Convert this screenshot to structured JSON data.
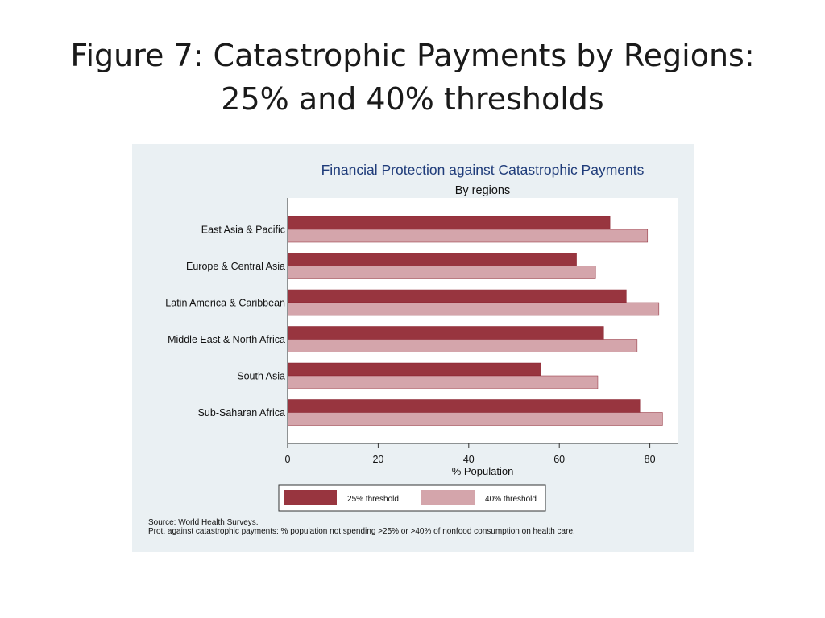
{
  "slide": {
    "title_line1": "Figure 7: Catastrophic Payments by Regions:",
    "title_line2": "25% and 40% thresholds"
  },
  "chart_data": {
    "type": "bar",
    "orientation": "horizontal",
    "title": "Financial Protection against Catastrophic Payments",
    "subtitle": "By regions",
    "xlabel": "% Population",
    "ylabel": "",
    "xlim": [
      0,
      86
    ],
    "xticks": [
      0,
      20,
      40,
      60,
      80
    ],
    "categories": [
      "East Asia & Pacific",
      "Europe & Central Asia",
      "Latin America & Caribbean",
      "Middle East & North Africa",
      "South Asia",
      "Sub-Saharan Africa"
    ],
    "series": [
      {
        "name": "25% threshold",
        "color": "#98353f",
        "values": [
          71.2,
          63.8,
          74.8,
          69.8,
          56.0,
          77.8
        ]
      },
      {
        "name": "40% threshold",
        "color": "#d4a5ab",
        "values": [
          79.5,
          68.0,
          82.0,
          77.2,
          68.5,
          82.8
        ]
      }
    ],
    "legend_position": "bottom",
    "grid": false,
    "notes": [
      "Source: World Health Surveys.",
      "Prot. against catastrophic payments: % population not spending >25% or >40% of nonfood consumption on health care."
    ]
  }
}
